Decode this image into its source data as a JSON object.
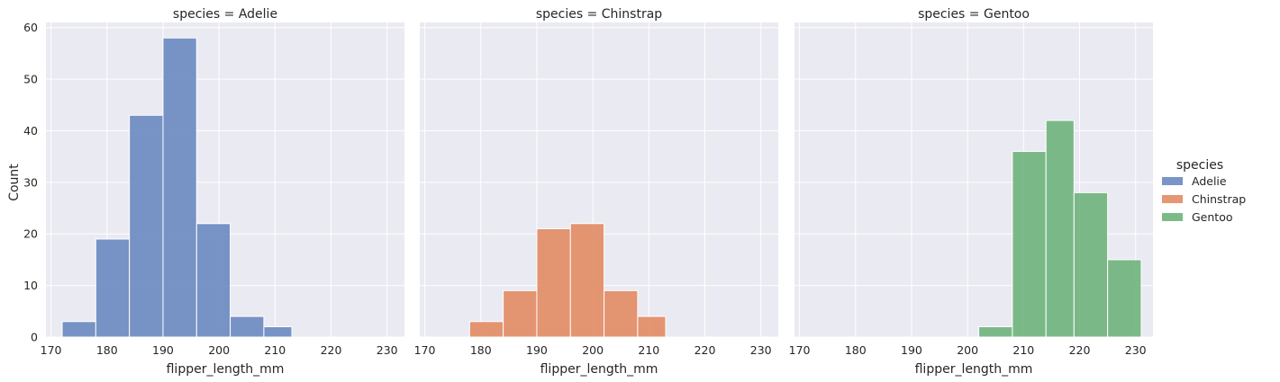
{
  "chart_data": {
    "type": "bar",
    "xlabel": "flipper_length_mm",
    "ylabel": "Count",
    "xlim": [
      169.1,
      233.1
    ],
    "ylim": [
      0,
      61
    ],
    "xticks": [
      170,
      180,
      190,
      200,
      210,
      220,
      230
    ],
    "yticks": [
      0,
      10,
      20,
      30,
      40,
      50,
      60
    ],
    "grid": true,
    "legend": {
      "title": "species",
      "position": "right",
      "entries": [
        {
          "name": "Adelie",
          "color": "#6785be"
        },
        {
          "name": "Chinstrap",
          "color": "#e1875e"
        },
        {
          "name": "Gentoo",
          "color": "#6ab277"
        }
      ]
    },
    "panels": [
      {
        "title": "species = Adelie",
        "color": "#6785be",
        "bins": [
          {
            "x0": 172,
            "x1": 178,
            "value": 3
          },
          {
            "x0": 178,
            "x1": 184,
            "value": 19
          },
          {
            "x0": 184,
            "x1": 190,
            "value": 43
          },
          {
            "x0": 190,
            "x1": 196,
            "value": 58
          },
          {
            "x0": 196,
            "x1": 202,
            "value": 22
          },
          {
            "x0": 202,
            "x1": 208,
            "value": 4
          },
          {
            "x0": 208,
            "x1": 213,
            "value": 2
          }
        ]
      },
      {
        "title": "species = Chinstrap",
        "color": "#e1875e",
        "bins": [
          {
            "x0": 178,
            "x1": 184,
            "value": 3
          },
          {
            "x0": 184,
            "x1": 190,
            "value": 9
          },
          {
            "x0": 190,
            "x1": 196,
            "value": 21
          },
          {
            "x0": 196,
            "x1": 202,
            "value": 22
          },
          {
            "x0": 202,
            "x1": 208,
            "value": 9
          },
          {
            "x0": 208,
            "x1": 213,
            "value": 4
          }
        ]
      },
      {
        "title": "species = Gentoo",
        "color": "#6ab277",
        "bins": [
          {
            "x0": 202,
            "x1": 208,
            "value": 2
          },
          {
            "x0": 208,
            "x1": 214,
            "value": 36
          },
          {
            "x0": 214,
            "x1": 219,
            "value": 42
          },
          {
            "x0": 219,
            "x1": 225,
            "value": 28
          },
          {
            "x0": 225,
            "x1": 231,
            "value": 15
          }
        ]
      }
    ]
  }
}
